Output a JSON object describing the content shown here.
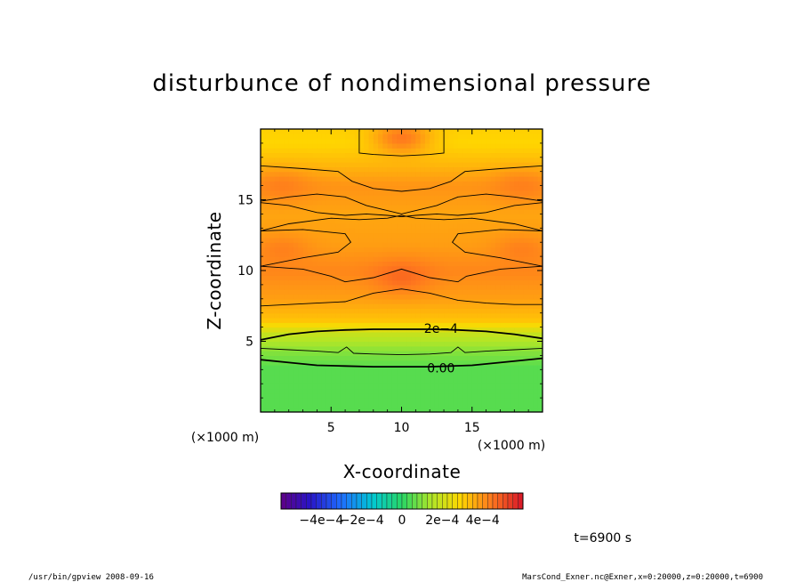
{
  "footer": {
    "left": "/usr/bin/gpview   2008-09-16",
    "right": "MarsCond_Exner.nc@Exner,x=0:20000,z=0:20000,t=6900",
    "time": "t=6900 s"
  },
  "chart_data": {
    "type": "heatmap",
    "title": "disturbunce of nondimensional pressure",
    "xlabel": "X-coordinate",
    "ylabel": "Z-coordinate",
    "x_unit": "(×1000 m)",
    "y_unit": "(×1000 m)",
    "xlim": [
      0,
      20
    ],
    "ylim": [
      0,
      20
    ],
    "xticks": [
      5,
      10,
      15
    ],
    "yticks": [
      5,
      10,
      15
    ],
    "xtick_labels": [
      "5",
      "10",
      "15"
    ],
    "ytick_labels": [
      "5",
      "10",
      "15"
    ],
    "colorbar": {
      "range": [
        -0.0006,
        0.0006
      ],
      "tick_values": [
        -0.0004,
        -0.0002,
        0,
        0.0002,
        0.0004
      ],
      "tick_labels": [
        "−4e−4",
        "−2e−4",
        "0",
        "2e−4",
        "4e−4"
      ]
    },
    "contour_labels": [
      {
        "text": "2e−4",
        "value": 0.0002,
        "x": 12.8,
        "z": 5.9
      },
      {
        "text": "0.00",
        "value": 0.0,
        "x": 12.8,
        "z": 3.1
      }
    ],
    "field_profile": [
      {
        "z": 0,
        "value": 5e-05
      },
      {
        "z": 3.2,
        "value": 5e-05
      },
      {
        "z": 4.3,
        "value": 0.0001
      },
      {
        "z": 5.5,
        "value": 0.00018
      },
      {
        "z": 6.5,
        "value": 0.00032
      },
      {
        "z": 8,
        "value": 0.00038
      },
      {
        "z": 10,
        "value": 0.00042
      },
      {
        "z": 12,
        "value": 0.00038
      },
      {
        "z": 14,
        "value": 0.00037
      },
      {
        "z": 16,
        "value": 0.0004
      },
      {
        "z": 17.5,
        "value": 0.00034
      },
      {
        "z": 19,
        "value": 0.00029
      },
      {
        "z": 20,
        "value": 0.0003
      }
    ],
    "hot_spots": [
      {
        "x": 10,
        "z": 19.4,
        "value": 0.00048
      },
      {
        "x": 10,
        "z": 9.6,
        "value": 0.00048
      },
      {
        "x": 1.5,
        "z": 16,
        "value": 0.00044
      },
      {
        "x": 18.5,
        "z": 16,
        "value": 0.00044
      },
      {
        "x": 1.5,
        "z": 11.5,
        "value": 0.00044
      },
      {
        "x": 18.5,
        "z": 11.5,
        "value": 0.00044
      }
    ],
    "contour_lines": [
      {
        "value": 0.0,
        "points": [
          [
            0,
            3.7
          ],
          [
            2,
            3.5
          ],
          [
            4,
            3.3
          ],
          [
            6,
            3.25
          ],
          [
            8,
            3.2
          ],
          [
            10,
            3.2
          ],
          [
            12,
            3.2
          ],
          [
            13.5,
            3.25
          ],
          [
            15,
            3.3
          ],
          [
            17,
            3.5
          ],
          [
            20,
            3.8
          ]
        ]
      },
      {
        "value": 0.0001,
        "points": [
          [
            0,
            4.5
          ],
          [
            2,
            4.4
          ],
          [
            4,
            4.3
          ],
          [
            5.5,
            4.2
          ],
          [
            6.1,
            4.6
          ],
          [
            6.6,
            4.15
          ],
          [
            8,
            4.1
          ],
          [
            10,
            4.05
          ],
          [
            12,
            4.1
          ],
          [
            13.5,
            4.2
          ],
          [
            14,
            4.6
          ],
          [
            14.5,
            4.2
          ],
          [
            16,
            4.3
          ],
          [
            18,
            4.4
          ],
          [
            20,
            4.5
          ]
        ]
      },
      {
        "value": 0.0002,
        "points": [
          [
            0,
            5.1
          ],
          [
            1,
            5.3
          ],
          [
            2,
            5.5
          ],
          [
            4,
            5.7
          ],
          [
            6,
            5.8
          ],
          [
            8,
            5.85
          ],
          [
            10,
            5.85
          ],
          [
            12,
            5.85
          ],
          [
            14,
            5.8
          ],
          [
            16,
            5.7
          ],
          [
            18,
            5.5
          ],
          [
            20,
            5.2
          ]
        ]
      },
      {
        "value": 0.0003,
        "points": [
          [
            0,
            7.5
          ],
          [
            2,
            7.6
          ],
          [
            4,
            7.7
          ],
          [
            6,
            7.8
          ],
          [
            8,
            8.4
          ],
          [
            10,
            8.7
          ],
          [
            12,
            8.4
          ],
          [
            14,
            7.9
          ],
          [
            16,
            7.7
          ],
          [
            18,
            7.6
          ],
          [
            20,
            7.6
          ]
        ]
      },
      {
        "value": 0.00038,
        "points": [
          [
            0,
            10.3
          ],
          [
            3,
            10.1
          ],
          [
            5,
            9.6
          ],
          [
            6,
            9.2
          ],
          [
            8,
            9.5
          ],
          [
            10,
            10.1
          ],
          [
            12,
            9.5
          ],
          [
            14,
            9.2
          ],
          [
            14.6,
            9.6
          ],
          [
            17,
            10.1
          ],
          [
            20,
            10.3
          ],
          [
            17,
            10.9
          ],
          [
            14.5,
            11.3
          ],
          [
            13.6,
            12
          ],
          [
            14,
            12.6
          ],
          [
            17,
            12.9
          ],
          [
            20,
            12.8
          ],
          [
            18,
            13.3
          ],
          [
            15,
            13.7
          ],
          [
            13,
            13.6
          ],
          [
            11,
            13.7
          ],
          [
            10,
            13.9
          ],
          [
            9,
            13.7
          ],
          [
            7,
            13.6
          ],
          [
            5,
            13.7
          ],
          [
            2,
            13.3
          ],
          [
            0,
            12.8
          ],
          [
            3,
            12.9
          ],
          [
            6,
            12.6
          ],
          [
            6.4,
            12
          ],
          [
            5.5,
            11.3
          ],
          [
            3,
            10.9
          ],
          [
            0,
            10.3
          ]
        ]
      },
      {
        "value": 0.00036,
        "points": [
          [
            0,
            14.8
          ],
          [
            2,
            14.6
          ],
          [
            4,
            14.1
          ],
          [
            6,
            13.9
          ],
          [
            7.5,
            14.0
          ],
          [
            9,
            13.9
          ],
          [
            10,
            13.8
          ],
          [
            11,
            13.9
          ],
          [
            12.5,
            14.0
          ],
          [
            14,
            13.9
          ],
          [
            16,
            14.1
          ],
          [
            18,
            14.6
          ],
          [
            20,
            14.8
          ]
        ]
      },
      {
        "value": 0.00041,
        "points": [
          [
            0,
            14.9
          ],
          [
            2,
            15.2
          ],
          [
            4,
            15.4
          ],
          [
            6,
            15.2
          ],
          [
            7.5,
            14.6
          ],
          [
            10,
            14.0
          ],
          [
            12.5,
            14.6
          ],
          [
            14,
            15.2
          ],
          [
            16,
            15.4
          ],
          [
            18,
            15.2
          ],
          [
            20,
            14.9
          ]
        ]
      },
      {
        "value": 0.00035,
        "points": [
          [
            0,
            17.4
          ],
          [
            3,
            17.2
          ],
          [
            5.5,
            17.0
          ],
          [
            6.5,
            16.3
          ],
          [
            8,
            15.8
          ],
          [
            10,
            15.6
          ],
          [
            12,
            15.8
          ],
          [
            13.5,
            16.3
          ],
          [
            14.5,
            17.0
          ],
          [
            17,
            17.2
          ],
          [
            20,
            17.4
          ]
        ]
      },
      {
        "value": 0.00045,
        "points": [
          [
            7,
            20
          ],
          [
            7,
            18.3
          ],
          [
            8,
            18.2
          ],
          [
            10,
            18.1
          ],
          [
            12,
            18.2
          ],
          [
            13,
            18.3
          ],
          [
            13,
            20
          ]
        ]
      }
    ]
  }
}
